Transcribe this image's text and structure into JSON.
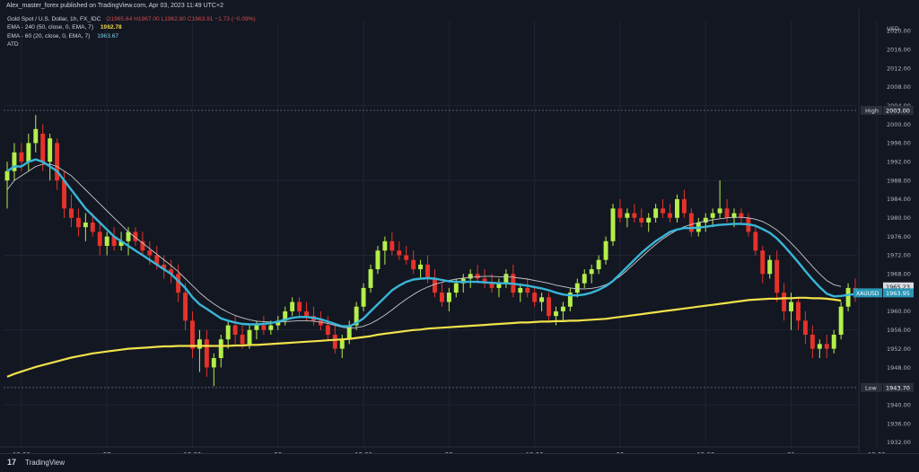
{
  "header": {
    "published": "Alex_master_forex published on TradingView.com, Apr 03, 2023 11:49 UTC+2"
  },
  "legend": {
    "symbol": "Gold Spot / U.S. Dollar, 1h, FX_IDC",
    "ohlc": "O1965.64  H1967.00  L1962.80  C1963.91  −1.73 (−0.09%)",
    "ema240_label": "EMA - 240 (50, close, 0, EMA, 7)",
    "ema240_value": "1962.78",
    "ema60_label": "EMA - 60 (20, close, 0, EMA, 7)",
    "ema60_value": "1963.67",
    "atd": "ATD"
  },
  "footer": {
    "logo": "17",
    "brand": "TradingView"
  },
  "colors": {
    "background": "#131722",
    "up": "#b4ef4a",
    "down": "#e5322a",
    "ema_cyan": "#39b6d8",
    "ema_yellow": "#f0e24a",
    "ema_white": "#c8c8c8",
    "grid": "#1f2433",
    "label_bg_blue": "#2a96b6"
  },
  "chart_data": {
    "type": "line",
    "title": "Gold Spot / U.S. Dollar, 1h, FX_IDC",
    "currency": "USD",
    "yticks": [
      1932,
      1936,
      1940,
      1944,
      1948,
      1952,
      1956,
      1960,
      1964,
      1968,
      1972,
      1976,
      1980,
      1984,
      1988,
      1992,
      1996,
      2000,
      2004,
      2008,
      2012,
      2016,
      2020
    ],
    "y_axis_labels": [
      "1932.00",
      "1936.00",
      "1940.00",
      "1944.00",
      "1948.00",
      "1952.00",
      "1956.00",
      "1960.00",
      "1964.00",
      "1968.00",
      "1972.00",
      "1976.00",
      "1980.00",
      "1984.00",
      "1988.00",
      "1992.00",
      "1996.00",
      "2000.00",
      "2004.00",
      "2008.00",
      "2012.00",
      "2016.00",
      "2020.00"
    ],
    "ylim": [
      1931,
      2022
    ],
    "xticks": [
      {
        "label": "12:00",
        "index": 2
      },
      {
        "label": "27",
        "index": 14
      },
      {
        "label": "12:00",
        "index": 26
      },
      {
        "label": "28",
        "index": 38
      },
      {
        "label": "12:00",
        "index": 50
      },
      {
        "label": "29",
        "index": 62
      },
      {
        "label": "12:00",
        "index": 74
      },
      {
        "label": "30",
        "index": 86
      },
      {
        "label": "12:00",
        "index": 98
      },
      {
        "label": "31",
        "index": 110
      },
      {
        "label": "12:00",
        "index": 122
      },
      {
        "label": "Apr",
        "index": 134
      },
      {
        "label": "12:00",
        "index": 146
      }
    ],
    "ohlc": [
      [
        1988,
        1992,
        1982,
        1990
      ],
      [
        1990,
        1996,
        1988,
        1994
      ],
      [
        1994,
        1996,
        1990,
        1992
      ],
      [
        1992,
        1998,
        1990,
        1996
      ],
      [
        1996,
        2002,
        1994,
        1999
      ],
      [
        1998,
        2000,
        1990,
        1992
      ],
      [
        1992,
        1998,
        1988,
        1997
      ],
      [
        1996,
        1997,
        1986,
        1988
      ],
      [
        1988,
        1990,
        1980,
        1982
      ],
      [
        1982,
        1985,
        1978,
        1980
      ],
      [
        1980,
        1982,
        1976,
        1978
      ],
      [
        1978,
        1981,
        1975,
        1979
      ],
      [
        1979,
        1981,
        1976,
        1977
      ],
      [
        1977,
        1979,
        1972,
        1974
      ],
      [
        1974,
        1977,
        1972,
        1976
      ],
      [
        1976,
        1978,
        1973,
        1974
      ],
      [
        1974,
        1977,
        1973,
        1975
      ],
      [
        1975,
        1978,
        1972,
        1977
      ],
      [
        1977,
        1978,
        1974,
        1975
      ],
      [
        1975,
        1977,
        1972,
        1973
      ],
      [
        1973,
        1975,
        1970,
        1972
      ],
      [
        1972,
        1974,
        1969,
        1970
      ],
      [
        1970,
        1972,
        1967,
        1969
      ],
      [
        1969,
        1971,
        1966,
        1968
      ],
      [
        1968,
        1970,
        1962,
        1964
      ],
      [
        1964,
        1966,
        1956,
        1958
      ],
      [
        1958,
        1960,
        1950,
        1952
      ],
      [
        1952,
        1956,
        1947,
        1954
      ],
      [
        1954,
        1956,
        1946,
        1948
      ],
      [
        1948,
        1951,
        1944,
        1950
      ],
      [
        1950,
        1955,
        1948,
        1954
      ],
      [
        1954,
        1958,
        1952,
        1957
      ],
      [
        1957,
        1959,
        1953,
        1955
      ],
      [
        1955,
        1957,
        1952,
        1953
      ],
      [
        1953,
        1957,
        1952,
        1956
      ],
      [
        1956,
        1958,
        1954,
        1957
      ],
      [
        1957,
        1959,
        1955,
        1956
      ],
      [
        1956,
        1958,
        1955,
        1957
      ],
      [
        1957,
        1959,
        1956,
        1958
      ],
      [
        1958,
        1961,
        1957,
        1960
      ],
      [
        1960,
        1963,
        1959,
        1962
      ],
      [
        1962,
        1963,
        1959,
        1960
      ],
      [
        1960,
        1962,
        1958,
        1959
      ],
      [
        1959,
        1961,
        1957,
        1958
      ],
      [
        1958,
        1960,
        1956,
        1957
      ],
      [
        1957,
        1959,
        1954,
        1955
      ],
      [
        1955,
        1957,
        1951,
        1952
      ],
      [
        1952,
        1955,
        1950,
        1954
      ],
      [
        1954,
        1958,
        1953,
        1957
      ],
      [
        1957,
        1962,
        1956,
        1961
      ],
      [
        1961,
        1966,
        1960,
        1965
      ],
      [
        1965,
        1970,
        1964,
        1969
      ],
      [
        1969,
        1974,
        1968,
        1973
      ],
      [
        1973,
        1976,
        1970,
        1975
      ],
      [
        1975,
        1977,
        1972,
        1973
      ],
      [
        1973,
        1975,
        1971,
        1972
      ],
      [
        1972,
        1974,
        1970,
        1971
      ],
      [
        1971,
        1973,
        1968,
        1969
      ],
      [
        1969,
        1971,
        1967,
        1970
      ],
      [
        1970,
        1972,
        1966,
        1967
      ],
      [
        1967,
        1969,
        1963,
        1964
      ],
      [
        1964,
        1966,
        1961,
        1962
      ],
      [
        1962,
        1965,
        1960,
        1964
      ],
      [
        1964,
        1967,
        1963,
        1966
      ],
      [
        1966,
        1968,
        1964,
        1967
      ],
      [
        1967,
        1969,
        1965,
        1968
      ],
      [
        1968,
        1970,
        1966,
        1967
      ],
      [
        1967,
        1969,
        1965,
        1966
      ],
      [
        1966,
        1968,
        1964,
        1965
      ],
      [
        1965,
        1967,
        1963,
        1966
      ],
      [
        1966,
        1969,
        1965,
        1968
      ],
      [
        1968,
        1970,
        1963,
        1964
      ],
      [
        1964,
        1966,
        1962,
        1965
      ],
      [
        1965,
        1967,
        1963,
        1964
      ],
      [
        1964,
        1965,
        1961,
        1962
      ],
      [
        1962,
        1964,
        1960,
        1963
      ],
      [
        1963,
        1964,
        1958,
        1959
      ],
      [
        1959,
        1961,
        1957,
        1960
      ],
      [
        1960,
        1962,
        1958,
        1961
      ],
      [
        1961,
        1965,
        1960,
        1964
      ],
      [
        1964,
        1967,
        1963,
        1966
      ],
      [
        1966,
        1969,
        1965,
        1968
      ],
      [
        1968,
        1970,
        1966,
        1969
      ],
      [
        1969,
        1972,
        1968,
        1971
      ],
      [
        1971,
        1976,
        1970,
        1975
      ],
      [
        1975,
        1983,
        1974,
        1982
      ],
      [
        1982,
        1984,
        1979,
        1980
      ],
      [
        1980,
        1982,
        1978,
        1981
      ],
      [
        1981,
        1983,
        1979,
        1980
      ],
      [
        1980,
        1982,
        1978,
        1979
      ],
      [
        1979,
        1981,
        1977,
        1980
      ],
      [
        1980,
        1983,
        1979,
        1982
      ],
      [
        1982,
        1984,
        1980,
        1981
      ],
      [
        1981,
        1983,
        1979,
        1980
      ],
      [
        1980,
        1985,
        1979,
        1984
      ],
      [
        1984,
        1986,
        1980,
        1981
      ],
      [
        1981,
        1982,
        1976,
        1977
      ],
      [
        1977,
        1980,
        1976,
        1979
      ],
      [
        1979,
        1981,
        1977,
        1980
      ],
      [
        1980,
        1982,
        1978,
        1981
      ],
      [
        1981,
        1988,
        1980,
        1982
      ],
      [
        1982,
        1984,
        1979,
        1980
      ],
      [
        1980,
        1982,
        1978,
        1981
      ],
      [
        1981,
        1982,
        1979,
        1980
      ],
      [
        1980,
        1981,
        1976,
        1977
      ],
      [
        1977,
        1978,
        1972,
        1973
      ],
      [
        1973,
        1974,
        1966,
        1968
      ],
      [
        1968,
        1972,
        1967,
        1971
      ],
      [
        1971,
        1973,
        1962,
        1964
      ],
      [
        1964,
        1966,
        1958,
        1960
      ],
      [
        1960,
        1964,
        1956,
        1962
      ],
      [
        1962,
        1963,
        1956,
        1958
      ],
      [
        1958,
        1960,
        1953,
        1955
      ],
      [
        1955,
        1957,
        1950,
        1952
      ],
      [
        1952,
        1954,
        1950,
        1953
      ],
      [
        1953,
        1955,
        1950,
        1952
      ],
      [
        1952,
        1956,
        1951,
        1955
      ],
      [
        1955,
        1962,
        1954,
        1961
      ],
      [
        1961,
        1966,
        1960,
        1965
      ],
      [
        1965,
        1967,
        1962,
        1964
      ]
    ],
    "series": [
      {
        "name": "EMA - 60 (20, close, 0, EMA, 7)",
        "color": "cyan",
        "values": [
          1990,
          1991,
          1991,
          1992,
          1992.5,
          1992,
          1991,
          1990,
          1988,
          1986,
          1984,
          1982,
          1980.5,
          1979,
          1977.5,
          1976,
          1975,
          1974,
          1973,
          1972,
          1971,
          1970,
          1969,
          1968,
          1966.5,
          1965,
          1963,
          1961.5,
          1960.5,
          1959.5,
          1958.5,
          1958,
          1957.6,
          1957.3,
          1957.2,
          1957.2,
          1957.3,
          1957.5,
          1957.8,
          1958.2,
          1958.6,
          1958.8,
          1958.8,
          1958.6,
          1958.3,
          1957.8,
          1957.3,
          1956.8,
          1956.8,
          1957.5,
          1958.5,
          1960,
          1961.5,
          1963,
          1964.5,
          1965.5,
          1966.3,
          1966.8,
          1967,
          1967.1,
          1967,
          1966.7,
          1966.4,
          1966.3,
          1966.3,
          1966.3,
          1966.3,
          1966.2,
          1966.1,
          1966,
          1966,
          1965.9,
          1965.7,
          1965.5,
          1965.2,
          1964.9,
          1964.5,
          1964,
          1963.6,
          1963.4,
          1963.4,
          1963.6,
          1964,
          1964.6,
          1965.4,
          1966.5,
          1968,
          1969.5,
          1971,
          1972.5,
          1973.8,
          1975,
          1976,
          1977,
          1977.5,
          1977.8,
          1977.8,
          1977.9,
          1978.1,
          1978.3,
          1978.5,
          1978.6,
          1978.7,
          1978.7,
          1978.6,
          1978.3,
          1977.6,
          1976.8,
          1975.6,
          1974,
          1972.3,
          1970.5,
          1968.6,
          1966.8,
          1965.2,
          1963.8,
          1963.2,
          1963.3,
          1963.5,
          1963.7
        ]
      },
      {
        "name": "EMA - 240 (50, close, 0, EMA, 7)",
        "color": "yellow",
        "values": [
          1946,
          1946.6,
          1947.1,
          1947.6,
          1948.1,
          1948.5,
          1948.9,
          1949.3,
          1949.7,
          1950.1,
          1950.4,
          1950.7,
          1951,
          1951.2,
          1951.4,
          1951.6,
          1951.8,
          1952,
          1952.1,
          1952.2,
          1952.3,
          1952.4,
          1952.5,
          1952.5,
          1952.6,
          1952.6,
          1952.6,
          1952.6,
          1952.6,
          1952.6,
          1952.6,
          1952.6,
          1952.7,
          1952.7,
          1952.8,
          1952.8,
          1952.9,
          1953,
          1953.1,
          1953.2,
          1953.3,
          1953.4,
          1953.5,
          1953.6,
          1953.7,
          1953.8,
          1953.9,
          1954,
          1954.1,
          1954.3,
          1954.5,
          1954.7,
          1955,
          1955.2,
          1955.4,
          1955.6,
          1955.8,
          1956,
          1956.1,
          1956.3,
          1956.4,
          1956.5,
          1956.6,
          1956.7,
          1956.8,
          1956.9,
          1957,
          1957.1,
          1957.2,
          1957.3,
          1957.4,
          1957.5,
          1957.6,
          1957.6,
          1957.7,
          1957.8,
          1957.8,
          1957.9,
          1957.9,
          1958,
          1958,
          1958.1,
          1958.2,
          1958.3,
          1958.4,
          1958.6,
          1958.8,
          1959,
          1959.2,
          1959.4,
          1959.6,
          1959.8,
          1960,
          1960.2,
          1960.4,
          1960.6,
          1960.8,
          1961,
          1961.2,
          1961.4,
          1961.6,
          1961.8,
          1962,
          1962.2,
          1962.4,
          1962.5,
          1962.6,
          1962.7,
          1962.7,
          1962.8,
          1962.8,
          1962.9,
          1962.9,
          1962.8,
          1962.8,
          1962.7,
          1962.5,
          1962.3
        ]
      },
      {
        "name": "EMA (white)",
        "color": "white",
        "values": [
          1986,
          1988,
          1989,
          1990,
          1991,
          1991.5,
          1991.5,
          1991,
          1990,
          1989,
          1987.5,
          1986,
          1984.5,
          1983,
          1981.5,
          1980,
          1978.5,
          1977,
          1975.8,
          1974.6,
          1973.4,
          1972.2,
          1971,
          1969.8,
          1968.5,
          1967,
          1965.5,
          1964,
          1962.7,
          1961.6,
          1960.6,
          1959.8,
          1959.1,
          1958.6,
          1958.2,
          1957.9,
          1957.8,
          1957.7,
          1957.7,
          1957.8,
          1957.9,
          1958,
          1958,
          1957.9,
          1957.7,
          1957.4,
          1957,
          1956.6,
          1956.4,
          1956.5,
          1956.8,
          1957.4,
          1958.2,
          1959.2,
          1960.3,
          1961.5,
          1962.6,
          1963.6,
          1964.5,
          1965.2,
          1965.8,
          1966.2,
          1966.6,
          1966.9,
          1967.1,
          1967.3,
          1967.4,
          1967.5,
          1967.5,
          1967.4,
          1967.4,
          1967.3,
          1967.1,
          1966.9,
          1966.6,
          1966.3,
          1966,
          1965.6,
          1965.3,
          1965,
          1964.8,
          1964.8,
          1964.9,
          1965.2,
          1965.7,
          1966.5,
          1967.5,
          1968.8,
          1970.2,
          1971.6,
          1973,
          1974.3,
          1975.5,
          1976.5,
          1977.4,
          1978.1,
          1978.6,
          1979,
          1979.3,
          1979.6,
          1979.8,
          1980,
          1980.1,
          1980.1,
          1980,
          1979.7,
          1979.2,
          1978.4,
          1977.4,
          1976.1,
          1974.6,
          1973,
          1971.3,
          1969.6,
          1968,
          1966.6,
          1965.7,
          1965.3
        ]
      }
    ],
    "horizontal_lines": [
      {
        "name": "High",
        "value": 2003,
        "label": "2003.00"
      },
      {
        "name": "Low",
        "value": 1943.7,
        "label": "1943.70"
      }
    ],
    "price_labels": [
      {
        "name": "XAUUSD",
        "value": 1963.95,
        "text": "1963.95"
      },
      {
        "name": "EMA",
        "value": 1965.23,
        "text": "1965.23"
      }
    ]
  }
}
